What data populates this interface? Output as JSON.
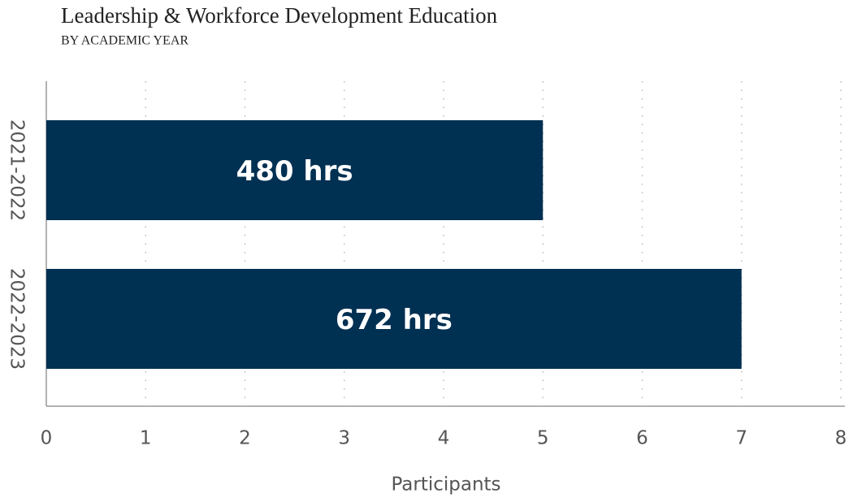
{
  "chart_data": {
    "type": "bar",
    "orientation": "horizontal",
    "title": "Leadership & Workforce Development Education",
    "subtitle": "BY ACADEMIC YEAR",
    "x_label": "Participants",
    "categories": [
      "2021-2022",
      "2022-2023"
    ],
    "values": [
      5,
      7
    ],
    "annotations": [
      "480 hrs",
      "672 hrs"
    ],
    "color": "#003052",
    "xlim": [
      0,
      8
    ],
    "xticks": [
      0,
      1,
      2,
      3,
      4,
      5,
      6,
      7,
      8
    ],
    "grid": true
  }
}
